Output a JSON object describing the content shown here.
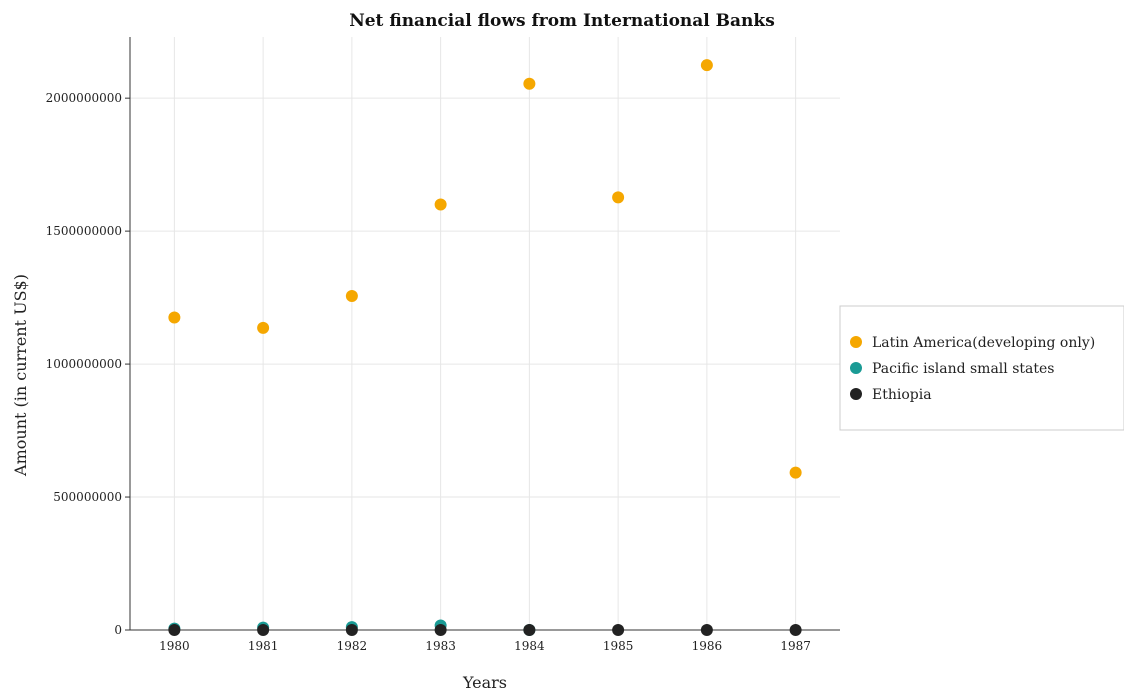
{
  "title": "Net financial flows from International Banks",
  "chart_data": {
    "type": "scatter",
    "title": "Net financial flows from International Banks",
    "xlabel": "Years",
    "ylabel": "Amount (in current US$)",
    "categories": [
      "1980",
      "1981",
      "1982",
      "1983",
      "1984",
      "1985",
      "1986",
      "1987"
    ],
    "ylim": [
      0,
      2230000000
    ],
    "yticks": [
      0,
      500000000,
      1000000000,
      1500000000,
      2000000000
    ],
    "ytick_labels": [
      "0",
      "500000000",
      "1000000000",
      "1500000000",
      "2000000000"
    ],
    "grid": true,
    "legend_position": "right",
    "series": [
      {
        "name": "Latin America(developing only)",
        "color": "#f5a700",
        "values": [
          1175000000,
          1136000000,
          1256000000,
          1600000000,
          2054000000,
          1627000000,
          2124000000,
          592000000
        ]
      },
      {
        "name": "Pacific island small states",
        "color": "#1a9b95",
        "values": [
          5000000,
          9000000,
          11000000,
          17000000,
          0,
          null,
          null,
          null
        ]
      },
      {
        "name": "Ethiopia",
        "color": "#222222",
        "values": [
          0,
          0,
          0,
          0,
          0,
          0,
          0,
          0
        ]
      }
    ]
  }
}
